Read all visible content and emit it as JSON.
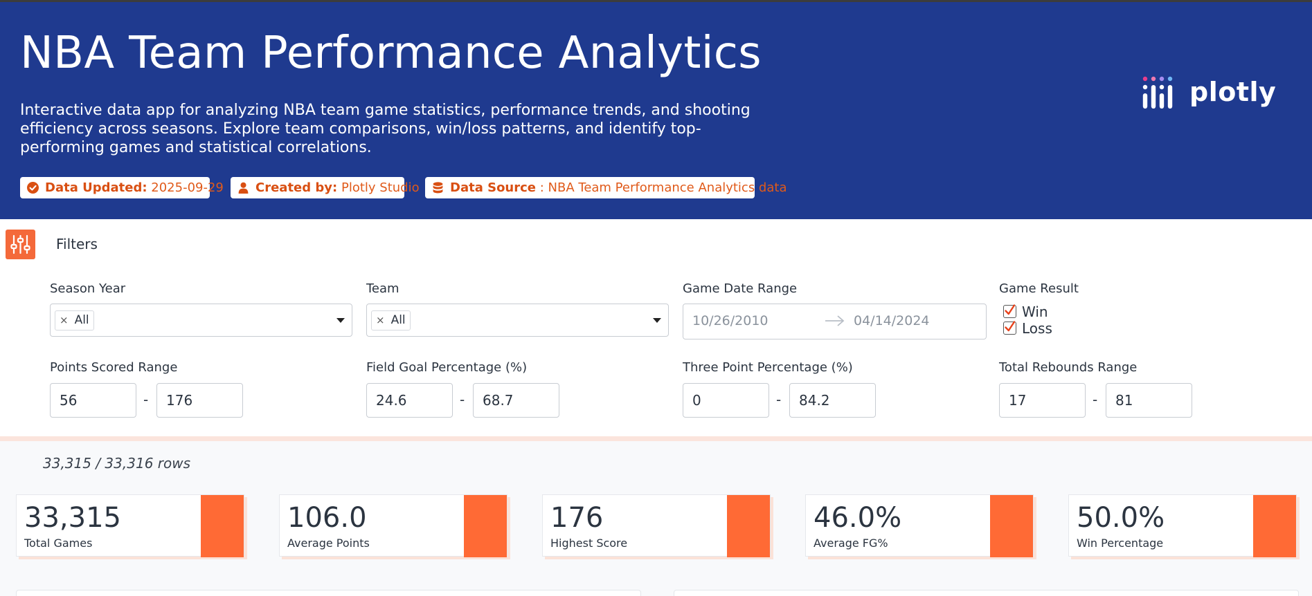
{
  "header": {
    "title": "NBA Team Performance Analytics",
    "description": "Interactive data app for analyzing NBA team game statistics, performance trends, and shooting efficiency across seasons. Explore team comparisons, win/loss patterns, and identify top-performing games and statistical correlations.",
    "badges": [
      {
        "icon": "check-circle-icon",
        "label": "Data Updated:",
        "value": "2025-09-29"
      },
      {
        "icon": "user-icon",
        "label": "Created by:",
        "value": "Plotly Studio"
      },
      {
        "icon": "database-icon",
        "label": "Data Source",
        "value": ": NBA Team Performance Analytics data"
      }
    ],
    "logo_text": "plotly",
    "background_color": "#1f3a8f"
  },
  "filters": {
    "title": "Filters",
    "season_year": {
      "label": "Season Year",
      "selected": "All"
    },
    "team": {
      "label": "Team",
      "selected": "All"
    },
    "date_range": {
      "label": "Game Date Range",
      "start": "10/26/2010",
      "end": "04/14/2024"
    },
    "game_result": {
      "label": "Game Result",
      "options": [
        {
          "label": "Win",
          "checked": true
        },
        {
          "label": "Loss",
          "checked": true
        }
      ]
    },
    "points": {
      "label": "Points Scored Range",
      "min": "56",
      "max": "176"
    },
    "fg_pct": {
      "label": "Field Goal Percentage (%)",
      "min": "24.6",
      "max": "68.7"
    },
    "three_pct": {
      "label": "Three Point Percentage (%)",
      "min": "0",
      "max": "84.2"
    },
    "rebounds": {
      "label": "Total Rebounds Range",
      "min": "17",
      "max": "81"
    },
    "range_separator": "-"
  },
  "row_count": "33,315 / 33,316 rows",
  "kpis": [
    {
      "value": "33,315",
      "label": "Total Games"
    },
    {
      "value": "106.0",
      "label": "Average Points"
    },
    {
      "value": "176",
      "label": "Highest Score"
    },
    {
      "value": "46.0%",
      "label": "Average FG%"
    },
    {
      "value": "50.0%",
      "label": "Win Percentage"
    }
  ],
  "accent_color": "#ff6a35"
}
